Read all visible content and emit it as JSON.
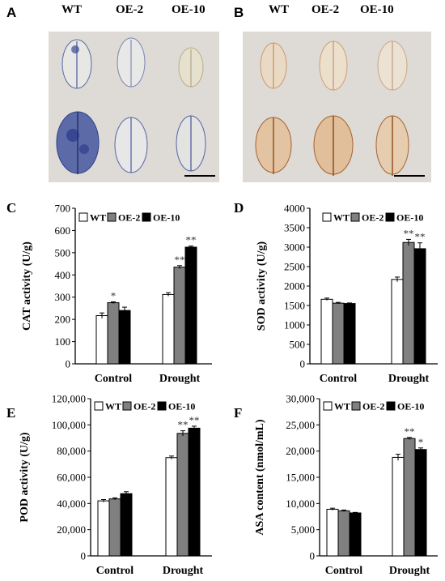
{
  "panels": {
    "A": {
      "letter": "A",
      "labels": [
        "WT",
        "OE-2",
        "OE-10"
      ]
    },
    "B": {
      "letter": "B",
      "labels": [
        "WT",
        "OE-2",
        "OE-10"
      ]
    }
  },
  "colors": {
    "WT": "#ffffff",
    "OE-2": "#808080",
    "OE-10": "#000000",
    "nbt_stain": "#2e3f8c",
    "dab_stain": "#a8622e",
    "photo_bg": "#dedad5"
  },
  "chart_data": [
    {
      "id": "C",
      "letter": "C",
      "type": "bar",
      "categories": [
        "Control",
        "Drought"
      ],
      "ylabel": "CAT activity (U/g)",
      "ylim": [
        0,
        700
      ],
      "ticks": [
        "0",
        "100",
        "200",
        "300",
        "400",
        "500",
        "600",
        "700"
      ],
      "legend_position": "top-left",
      "series": [
        {
          "name": "WT",
          "values": [
            217,
            312
          ],
          "errors": [
            12,
            8
          ],
          "sig": [
            "",
            ""
          ]
        },
        {
          "name": "OE-2",
          "values": [
            275,
            435
          ],
          "errors": [
            4,
            7
          ],
          "sig": [
            "*",
            "**"
          ]
        },
        {
          "name": "OE-10",
          "values": [
            240,
            525
          ],
          "errors": [
            15,
            5
          ],
          "sig": [
            "",
            "**"
          ]
        }
      ]
    },
    {
      "id": "D",
      "letter": "D",
      "type": "bar",
      "categories": [
        "Control",
        "Drought"
      ],
      "ylabel": "SOD activity (U/g)",
      "ylim": [
        0,
        4000
      ],
      "ticks": [
        "0",
        "500",
        "1000",
        "1500",
        "2000",
        "2500",
        "3000",
        "3500",
        "4000"
      ],
      "legend_position": "top-right",
      "series": [
        {
          "name": "WT",
          "values": [
            1660,
            2170
          ],
          "errors": [
            30,
            60
          ],
          "sig": [
            "",
            ""
          ]
        },
        {
          "name": "OE-2",
          "values": [
            1560,
            3120
          ],
          "errors": [
            20,
            80
          ],
          "sig": [
            "",
            "**"
          ]
        },
        {
          "name": "OE-10",
          "values": [
            1550,
            2960
          ],
          "errors": [
            15,
            150
          ],
          "sig": [
            "",
            "**"
          ]
        }
      ]
    },
    {
      "id": "E",
      "letter": "E",
      "type": "bar",
      "categories": [
        "Control",
        "Drought"
      ],
      "ylabel": "POD activity (U/g)",
      "ylim": [
        0,
        120000
      ],
      "ticks": [
        "0",
        "20,000",
        "40,000",
        "60,000",
        "80,000",
        "100,000",
        "120,000"
      ],
      "legend_position": "top-left",
      "series": [
        {
          "name": "WT",
          "values": [
            42000,
            75000
          ],
          "errors": [
            1000,
            1200
          ],
          "sig": [
            "",
            ""
          ]
        },
        {
          "name": "OE-2",
          "values": [
            43500,
            93500
          ],
          "errors": [
            800,
            2000
          ],
          "sig": [
            "",
            "**"
          ]
        },
        {
          "name": "OE-10",
          "values": [
            47500,
            97500
          ],
          "errors": [
            1500,
            1500
          ],
          "sig": [
            "",
            "**"
          ]
        }
      ]
    },
    {
      "id": "F",
      "letter": "F",
      "type": "bar",
      "categories": [
        "Control",
        "Drought"
      ],
      "ylabel": "ASA content (nmol/mL)",
      "ylim": [
        0,
        30000
      ],
      "ticks": [
        "0",
        "5,000",
        "10,000",
        "15,000",
        "20,000",
        "25,000",
        "30,000"
      ],
      "legend_position": "top-left",
      "series": [
        {
          "name": "WT",
          "values": [
            8900,
            18800
          ],
          "errors": [
            200,
            600
          ],
          "sig": [
            "",
            ""
          ]
        },
        {
          "name": "OE-2",
          "values": [
            8600,
            22400
          ],
          "errors": [
            150,
            200
          ],
          "sig": [
            "",
            "**"
          ]
        },
        {
          "name": "OE-10",
          "values": [
            8200,
            20300
          ],
          "errors": [
            100,
            300
          ],
          "sig": [
            "",
            "*"
          ]
        }
      ]
    }
  ]
}
